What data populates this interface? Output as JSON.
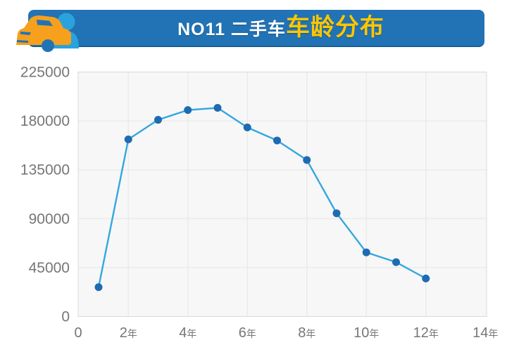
{
  "header": {
    "title_white": "NO11 二手车",
    "title_yellow": "车龄分布",
    "banner_color": "#2173b5",
    "banner_edge_color": "#1a5e95",
    "title_yellow_color": "#fdc603",
    "icon_car_color": "#f6a01d",
    "icon_person_color": "#2aa3dc"
  },
  "chart_data": {
    "type": "line",
    "title": "NO11二手车车龄分布",
    "x": [
      1,
      2,
      3,
      4,
      5,
      6,
      7,
      8,
      9,
      10,
      11,
      12
    ],
    "x_unit": "年",
    "values": [
      27000,
      163000,
      181000,
      190000,
      192000,
      174000,
      162000,
      144000,
      95000,
      59000,
      50000,
      35000
    ],
    "x_tick_labels": [
      "0",
      "2年",
      "4年",
      "6年",
      "8年",
      "10年",
      "12年",
      "14年"
    ],
    "y_tick_labels": [
      "0",
      "45000",
      "90000",
      "135000",
      "180000",
      "225000"
    ],
    "xlim": [
      0,
      14
    ],
    "ylim": [
      0,
      225000
    ],
    "grid": true,
    "legend": null,
    "line_color": "#33a7e0",
    "marker_color": "#1e6bb2",
    "plot_bg_color": "#f7f7f7",
    "plot_border_color": "#d9d9d9",
    "grid_color": "#e6e6e6",
    "axis_label_color": "#767676"
  }
}
